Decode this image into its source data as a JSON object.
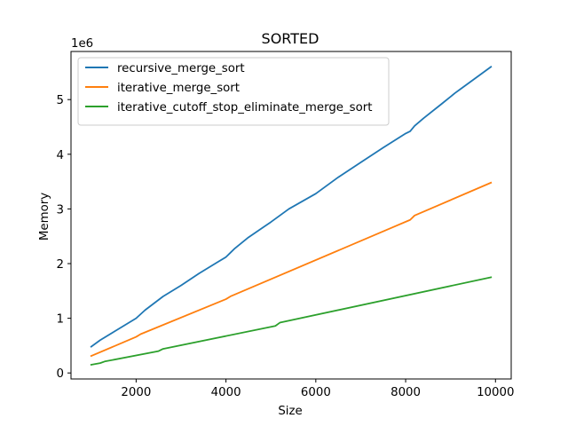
{
  "chart_data": {
    "type": "line",
    "title": "SORTED",
    "xlabel": "Size",
    "ylabel": "Memory",
    "y_multiplier_label": "1e6",
    "xlim": [
      550,
      10350
    ],
    "ylim": [
      -0.11,
      5.88
    ],
    "x_ticks": [
      2000,
      4000,
      6000,
      8000,
      10000
    ],
    "x_tick_labels": [
      "2000",
      "4000",
      "6000",
      "8000",
      "10000"
    ],
    "y_ticks": [
      0,
      1,
      2,
      3,
      4,
      5
    ],
    "y_tick_labels": [
      "0",
      "1",
      "2",
      "3",
      "4",
      "5"
    ],
    "grid": false,
    "legend_position": "upper-left",
    "series": [
      {
        "name": "recursive_merge_sort",
        "color": "#1f77b4",
        "x": [
          1000,
          1200,
          1500,
          2000,
          2200,
          2600,
          3000,
          3400,
          3800,
          4000,
          4100,
          4200,
          4500,
          5000,
          5400,
          6000,
          6500,
          7000,
          7500,
          8000,
          8100,
          8200,
          8400,
          8800,
          9100,
          9200,
          9600,
          9900
        ],
        "values": [
          0.48,
          0.6,
          0.75,
          1.0,
          1.15,
          1.4,
          1.6,
          1.82,
          2.02,
          2.12,
          2.2,
          2.28,
          2.48,
          2.76,
          3.0,
          3.28,
          3.58,
          3.85,
          4.12,
          4.38,
          4.42,
          4.52,
          4.66,
          4.92,
          5.12,
          5.18,
          5.42,
          5.6
        ]
      },
      {
        "name": "iterative_merge_sort",
        "color": "#ff7f0e",
        "x": [
          1000,
          2000,
          2100,
          4000,
          4100,
          8100,
          8200,
          9900
        ],
        "values": [
          0.31,
          0.66,
          0.71,
          1.35,
          1.4,
          2.8,
          2.88,
          3.48
        ]
      },
      {
        "name": "iterative_cutoff_stop_eliminate_merge_sort",
        "color": "#2ca02c",
        "x": [
          1000,
          1200,
          1300,
          2500,
          2600,
          5100,
          5200,
          9900
        ],
        "values": [
          0.15,
          0.18,
          0.21,
          0.4,
          0.44,
          0.86,
          0.92,
          1.75
        ]
      }
    ]
  }
}
